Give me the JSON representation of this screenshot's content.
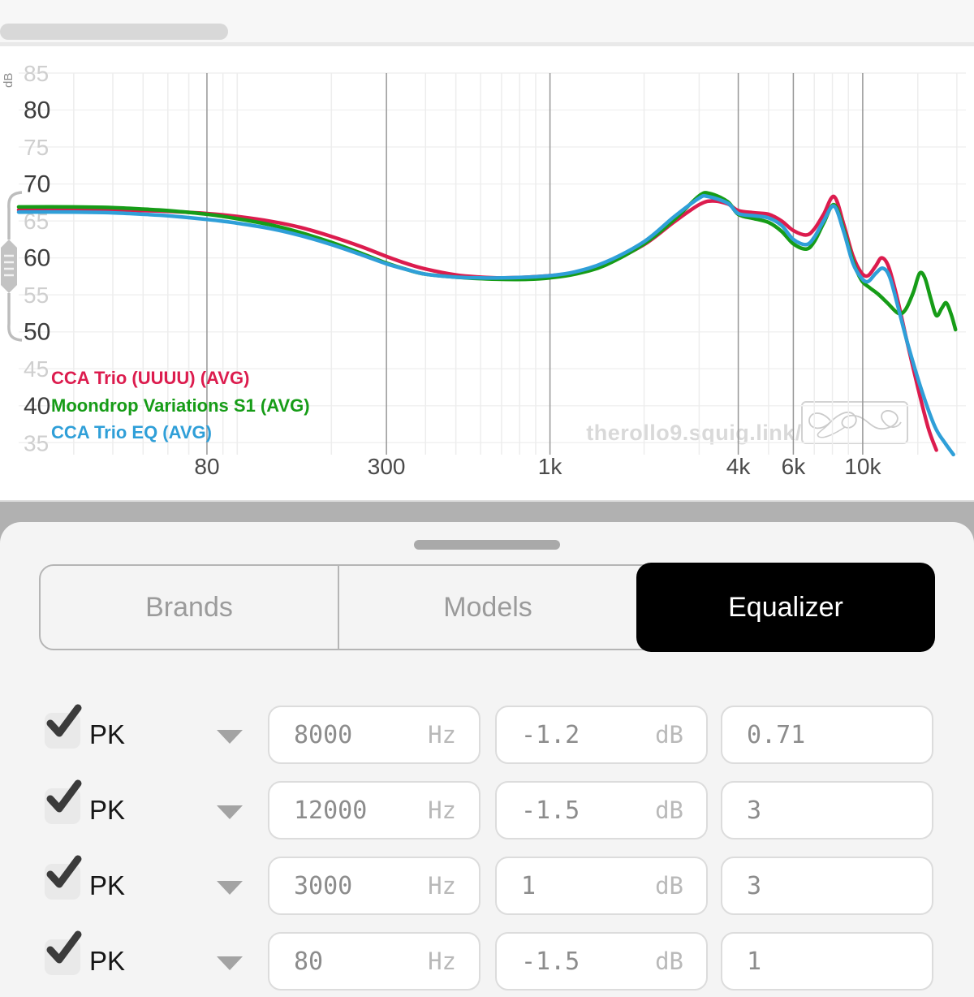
{
  "chart_data": {
    "type": "line",
    "x_scale": "log",
    "xlim": [
      20,
      20000
    ],
    "ylabel_unit": "dB",
    "watermark": "therollo9.squig.link/",
    "grid": true,
    "legend_position": "bottom-left",
    "y_ticks": [
      {
        "v": 85,
        "label": "85",
        "emph": false
      },
      {
        "v": 80,
        "label": "80",
        "emph": true
      },
      {
        "v": 75,
        "label": "75",
        "emph": false
      },
      {
        "v": 70,
        "label": "70",
        "emph": true
      },
      {
        "v": 65,
        "label": "65",
        "emph": false
      },
      {
        "v": 60,
        "label": "60",
        "emph": true
      },
      {
        "v": 55,
        "label": "55",
        "emph": false
      },
      {
        "v": 50,
        "label": "50",
        "emph": true
      },
      {
        "v": 45,
        "label": "45",
        "emph": false
      },
      {
        "v": 40,
        "label": "40",
        "emph": true
      },
      {
        "v": 35,
        "label": "35",
        "emph": false
      }
    ],
    "x_ticks": [
      {
        "f": 80,
        "label": "80"
      },
      {
        "f": 300,
        "label": "300"
      },
      {
        "f": 1000,
        "label": "1k"
      },
      {
        "f": 4000,
        "label": "4k"
      },
      {
        "f": 6000,
        "label": "6k"
      },
      {
        "f": 10000,
        "label": "10k"
      }
    ],
    "x_grid_light": [
      30,
      40,
      50,
      60,
      70,
      90,
      100,
      200,
      400,
      500,
      600,
      700,
      800,
      900,
      2000,
      3000,
      5000,
      7000,
      8000,
      9000,
      15000,
      20000
    ],
    "series": [
      {
        "name": "CCA Trio (UUUU) (AVG)",
        "color": "#dc1c4e",
        "points": [
          [
            20,
            66.5
          ],
          [
            30,
            66.5
          ],
          [
            40,
            66.5
          ],
          [
            50,
            66.4
          ],
          [
            60,
            66.3
          ],
          [
            80,
            66.0
          ],
          [
            100,
            65.6
          ],
          [
            130,
            64.9
          ],
          [
            160,
            64.1
          ],
          [
            200,
            62.9
          ],
          [
            250,
            61.5
          ],
          [
            300,
            60.2
          ],
          [
            350,
            59.2
          ],
          [
            400,
            58.5
          ],
          [
            500,
            57.7
          ],
          [
            600,
            57.4
          ],
          [
            700,
            57.3
          ],
          [
            850,
            57.4
          ],
          [
            1000,
            57.6
          ],
          [
            1200,
            58.0
          ],
          [
            1500,
            59.2
          ],
          [
            2000,
            61.8
          ],
          [
            2500,
            64.9
          ],
          [
            3000,
            67.2
          ],
          [
            3300,
            67.7
          ],
          [
            3700,
            67.3
          ],
          [
            4000,
            66.4
          ],
          [
            4500,
            66.1
          ],
          [
            5000,
            65.9
          ],
          [
            5500,
            65.0
          ],
          [
            6000,
            63.7
          ],
          [
            6600,
            63.1
          ],
          [
            7000,
            63.9
          ],
          [
            7500,
            65.9
          ],
          [
            8100,
            68.3
          ],
          [
            8700,
            64.5
          ],
          [
            9300,
            60.3
          ],
          [
            9900,
            58.0
          ],
          [
            10400,
            57.6
          ],
          [
            11000,
            58.9
          ],
          [
            11500,
            60.0
          ],
          [
            12100,
            58.8
          ],
          [
            12900,
            54.5
          ],
          [
            13800,
            49.0
          ],
          [
            15000,
            42.5
          ],
          [
            16200,
            37.0
          ],
          [
            17200,
            34.0
          ]
        ]
      },
      {
        "name": "Moondrop Variations S1 (AVG)",
        "color": "#169c17",
        "points": [
          [
            20,
            66.9
          ],
          [
            30,
            66.9
          ],
          [
            40,
            66.8
          ],
          [
            50,
            66.6
          ],
          [
            60,
            66.4
          ],
          [
            80,
            65.9
          ],
          [
            100,
            65.3
          ],
          [
            130,
            64.4
          ],
          [
            160,
            63.4
          ],
          [
            200,
            62.1
          ],
          [
            250,
            60.6
          ],
          [
            300,
            59.3
          ],
          [
            350,
            58.4
          ],
          [
            400,
            57.8
          ],
          [
            500,
            57.4
          ],
          [
            600,
            57.2
          ],
          [
            700,
            57.1
          ],
          [
            850,
            57.1
          ],
          [
            1000,
            57.3
          ],
          [
            1200,
            57.8
          ],
          [
            1500,
            59.0
          ],
          [
            2000,
            61.9
          ],
          [
            2500,
            65.2
          ],
          [
            3000,
            68.4
          ],
          [
            3250,
            68.7
          ],
          [
            3700,
            67.6
          ],
          [
            4000,
            65.9
          ],
          [
            4500,
            65.3
          ],
          [
            5000,
            64.8
          ],
          [
            5500,
            63.6
          ],
          [
            6000,
            61.9
          ],
          [
            6600,
            61.2
          ],
          [
            7000,
            62.2
          ],
          [
            7500,
            64.7
          ],
          [
            8100,
            67.2
          ],
          [
            8700,
            63.8
          ],
          [
            9300,
            59.6
          ],
          [
            9900,
            57.0
          ],
          [
            10500,
            56.0
          ],
          [
            11200,
            55.1
          ],
          [
            12000,
            53.9
          ],
          [
            13000,
            52.5
          ],
          [
            13700,
            53.0
          ],
          [
            14500,
            55.3
          ],
          [
            15200,
            57.9
          ],
          [
            15800,
            57.3
          ],
          [
            16500,
            54.5
          ],
          [
            17200,
            52.2
          ],
          [
            17900,
            53.2
          ],
          [
            18500,
            53.9
          ],
          [
            19200,
            52.3
          ],
          [
            19800,
            50.3
          ]
        ]
      },
      {
        "name": "CCA Trio EQ (AVG)",
        "color": "#2f9fd8",
        "points": [
          [
            20,
            66.2
          ],
          [
            30,
            66.2
          ],
          [
            40,
            66.1
          ],
          [
            50,
            65.9
          ],
          [
            60,
            65.7
          ],
          [
            80,
            65.2
          ],
          [
            100,
            64.7
          ],
          [
            130,
            63.9
          ],
          [
            160,
            63.0
          ],
          [
            200,
            61.8
          ],
          [
            250,
            60.4
          ],
          [
            300,
            59.2
          ],
          [
            350,
            58.4
          ],
          [
            400,
            57.8
          ],
          [
            500,
            57.4
          ],
          [
            600,
            57.3
          ],
          [
            700,
            57.3
          ],
          [
            850,
            57.4
          ],
          [
            1000,
            57.6
          ],
          [
            1200,
            58.1
          ],
          [
            1500,
            59.4
          ],
          [
            2000,
            62.2
          ],
          [
            2500,
            65.6
          ],
          [
            3000,
            68.1
          ],
          [
            3200,
            68.3
          ],
          [
            3700,
            67.4
          ],
          [
            4000,
            66.0
          ],
          [
            4500,
            65.7
          ],
          [
            5000,
            65.4
          ],
          [
            5500,
            64.4
          ],
          [
            6000,
            62.5
          ],
          [
            6600,
            61.8
          ],
          [
            7000,
            62.8
          ],
          [
            7500,
            65.0
          ],
          [
            8100,
            67.0
          ],
          [
            8700,
            63.5
          ],
          [
            9300,
            59.3
          ],
          [
            9900,
            57.3
          ],
          [
            10400,
            56.8
          ],
          [
            11000,
            57.9
          ],
          [
            11600,
            58.6
          ],
          [
            12200,
            57.4
          ],
          [
            13000,
            53.2
          ],
          [
            13900,
            48.5
          ],
          [
            15400,
            42.2
          ],
          [
            17000,
            37.2
          ],
          [
            18300,
            35.0
          ],
          [
            19500,
            33.4
          ]
        ]
      }
    ]
  },
  "sheet": {
    "tabs": [
      {
        "label": "Brands",
        "active": false
      },
      {
        "label": "Models",
        "active": false
      },
      {
        "label": "Equalizer",
        "active": true
      }
    ]
  },
  "equalizer": {
    "units": {
      "freq": "Hz",
      "gain": "dB"
    },
    "filters": [
      {
        "enabled": true,
        "type": "PK",
        "freq": "8000",
        "gain": "-1.2",
        "q": "0.71"
      },
      {
        "enabled": true,
        "type": "PK",
        "freq": "12000",
        "gain": "-1.5",
        "q": "3"
      },
      {
        "enabled": true,
        "type": "PK",
        "freq": "3000",
        "gain": "1",
        "q": "3"
      },
      {
        "enabled": true,
        "type": "PK",
        "freq": "80",
        "gain": "-1.5",
        "q": "1"
      }
    ]
  }
}
